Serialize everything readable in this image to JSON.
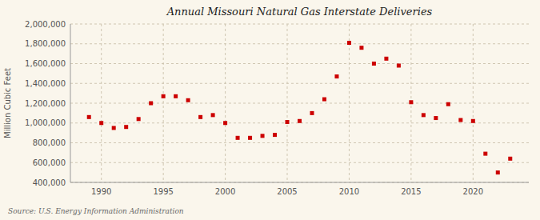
{
  "chart_data": {
    "type": "scatter",
    "title": "Annual Missouri Natural Gas Interstate Deliveries",
    "ylabel": "Million Cubic Feet",
    "source": "Source: U.S. Energy Information Administration",
    "color": "#CC0000",
    "marker": "square",
    "grid": true,
    "x": [
      1989,
      1990,
      1991,
      1992,
      1993,
      1994,
      1995,
      1996,
      1997,
      1998,
      1999,
      2000,
      2001,
      2002,
      2003,
      2004,
      2005,
      2006,
      2007,
      2008,
      2009,
      2010,
      2011,
      2012,
      2013,
      2014,
      2015,
      2016,
      2017,
      2018,
      2019,
      2020,
      2021,
      2022,
      2023
    ],
    "values": [
      1060000,
      1000000,
      950000,
      960000,
      1040000,
      1200000,
      1270000,
      1270000,
      1230000,
      1060000,
      1080000,
      1000000,
      850000,
      850000,
      870000,
      880000,
      1010000,
      1020000,
      1100000,
      1240000,
      1470000,
      1810000,
      1760000,
      1600000,
      1650000,
      1580000,
      1210000,
      1080000,
      1050000,
      1190000,
      1030000,
      1020000,
      690000,
      500000,
      640000
    ],
    "xlim": [
      1987.5,
      2024.5
    ],
    "xticks": [
      1990,
      1995,
      2000,
      2005,
      2010,
      2015,
      2020
    ],
    "ylim": [
      400000,
      2000000
    ],
    "yticks": [
      {
        "value": 400000,
        "label": "400,000"
      },
      {
        "value": 600000,
        "label": "600,000"
      },
      {
        "value": 800000,
        "label": "800,000"
      },
      {
        "value": 1000000,
        "label": "1,000,000"
      },
      {
        "value": 1200000,
        "label": "1,200,000"
      },
      {
        "value": 1400000,
        "label": "1,400,000"
      },
      {
        "value": 1600000,
        "label": "1,600,000"
      },
      {
        "value": 1800000,
        "label": "1,800,000"
      },
      {
        "value": 2000000,
        "label": "2,000,000"
      }
    ]
  }
}
